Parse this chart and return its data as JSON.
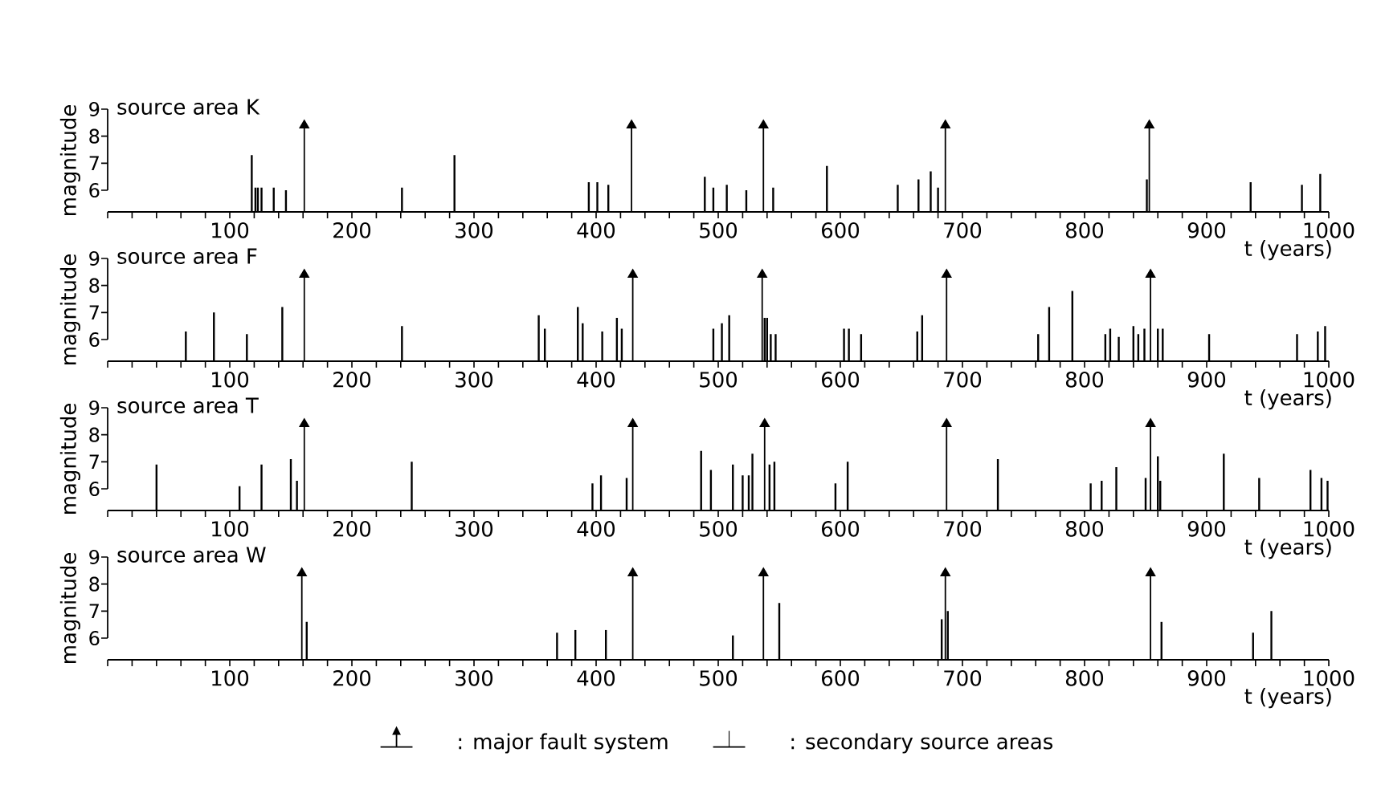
{
  "chart_data": [
    {
      "type": "lollipop",
      "title": "source area K",
      "ylabel": "magnitude",
      "xlabel": "t (years)",
      "xlim": [
        0,
        1000
      ],
      "ylim": [
        5.2,
        9
      ],
      "yticks": [
        6,
        7,
        8,
        9
      ],
      "xticks": [
        {
          "value": 0,
          "label": null
        },
        {
          "value": 20,
          "label": null
        },
        {
          "value": 40,
          "label": null
        },
        {
          "value": 60,
          "label": null
        },
        {
          "value": 80,
          "label": null
        },
        100,
        {
          "value": 120,
          "label": null
        },
        {
          "value": 140,
          "label": null
        },
        {
          "value": 160,
          "label": null
        },
        {
          "value": 180,
          "label": null
        },
        200,
        {
          "value": 220,
          "label": null
        },
        {
          "value": 240,
          "label": null
        },
        {
          "value": 260,
          "label": null
        },
        {
          "value": 280,
          "label": null
        },
        300,
        {
          "value": 320,
          "label": null
        },
        {
          "value": 340,
          "label": null
        },
        {
          "value": 360,
          "label": null
        },
        {
          "value": 380,
          "label": null
        },
        400,
        {
          "value": 420,
          "label": null
        },
        {
          "value": 440,
          "label": null
        },
        {
          "value": 460,
          "label": null
        },
        {
          "value": 480,
          "label": null
        },
        500,
        {
          "value": 520,
          "label": null
        },
        {
          "value": 540,
          "label": null
        },
        {
          "value": 560,
          "label": null
        },
        {
          "value": 580,
          "label": null
        },
        600,
        {
          "value": 620,
          "label": null
        },
        {
          "value": 640,
          "label": null
        },
        {
          "value": 660,
          "label": null
        },
        {
          "value": 680,
          "label": null
        },
        700,
        {
          "value": 720,
          "label": null
        },
        {
          "value": 740,
          "label": null
        },
        {
          "value": 760,
          "label": null
        },
        {
          "value": 780,
          "label": null
        },
        800,
        {
          "value": 820,
          "label": null
        },
        {
          "value": 840,
          "label": null
        },
        {
          "value": 860,
          "label": null
        },
        {
          "value": 880,
          "label": null
        },
        900,
        {
          "value": 920,
          "label": null
        },
        {
          "value": 940,
          "label": null
        },
        {
          "value": 960,
          "label": null
        },
        {
          "value": 980,
          "label": null
        },
        1000
      ],
      "series": [
        {
          "color": "#000000",
          "marker": "triangle",
          "x": [
            161,
            429,
            537,
            686,
            853
          ],
          "values": [
            8.4,
            8.4,
            8.4,
            8.4,
            8.4
          ]
        },
        {
          "type": "bar",
          "color": "#000000",
          "marker": "none",
          "x": [
            118,
            121,
            123,
            126,
            136,
            146,
            241,
            284,
            394,
            401,
            410,
            489,
            496,
            507,
            523,
            545,
            589,
            647,
            664,
            674,
            680,
            851,
            936,
            978,
            993
          ],
          "values": [
            7.3,
            6.1,
            6.1,
            6.1,
            6.1,
            6.0,
            6.1,
            7.3,
            6.3,
            6.3,
            6.2,
            6.5,
            6.1,
            6.2,
            6.0,
            6.1,
            6.9,
            6.2,
            6.4,
            6.7,
            6.1,
            6.4,
            6.3,
            6.2,
            6.6
          ]
        }
      ]
    },
    {
      "type": "lollipop",
      "title": "source area F",
      "ylabel": "magnitude",
      "xlabel": "t (years)",
      "xlim": [
        0,
        1000
      ],
      "ylim": [
        5.2,
        9
      ],
      "yticks": [
        6,
        7,
        8,
        9
      ],
      "xticks": [
        {
          "value": 0,
          "label": null
        },
        {
          "value": 20,
          "label": null
        },
        {
          "value": 40,
          "label": null
        },
        {
          "value": 60,
          "label": null
        },
        {
          "value": 80,
          "label": null
        },
        100,
        {
          "value": 120,
          "label": null
        },
        {
          "value": 140,
          "label": null
        },
        {
          "value": 160,
          "label": null
        },
        {
          "value": 180,
          "label": null
        },
        200,
        {
          "value": 220,
          "label": null
        },
        {
          "value": 240,
          "label": null
        },
        {
          "value": 260,
          "label": null
        },
        {
          "value": 280,
          "label": null
        },
        300,
        {
          "value": 320,
          "label": null
        },
        {
          "value": 340,
          "label": null
        },
        {
          "value": 360,
          "label": null
        },
        {
          "value": 380,
          "label": null
        },
        400,
        {
          "value": 420,
          "label": null
        },
        {
          "value": 440,
          "label": null
        },
        {
          "value": 460,
          "label": null
        },
        {
          "value": 480,
          "label": null
        },
        500,
        {
          "value": 520,
          "label": null
        },
        {
          "value": 540,
          "label": null
        },
        {
          "value": 560,
          "label": null
        },
        {
          "value": 580,
          "label": null
        },
        600,
        {
          "value": 620,
          "label": null
        },
        {
          "value": 640,
          "label": null
        },
        {
          "value": 660,
          "label": null
        },
        {
          "value": 680,
          "label": null
        },
        700,
        {
          "value": 720,
          "label": null
        },
        {
          "value": 740,
          "label": null
        },
        {
          "value": 760,
          "label": null
        },
        {
          "value": 780,
          "label": null
        },
        800,
        {
          "value": 820,
          "label": null
        },
        {
          "value": 840,
          "label": null
        },
        {
          "value": 860,
          "label": null
        },
        {
          "value": 880,
          "label": null
        },
        900,
        {
          "value": 920,
          "label": null
        },
        {
          "value": 940,
          "label": null
        },
        {
          "value": 960,
          "label": null
        },
        {
          "value": 980,
          "label": null
        },
        1000
      ],
      "series": [
        {
          "color": "#000000",
          "marker": "triangle",
          "x": [
            161,
            430,
            536,
            687,
            854
          ],
          "values": [
            8.4,
            8.4,
            8.4,
            8.4,
            8.4
          ]
        },
        {
          "type": "bar",
          "color": "#000000",
          "marker": "none",
          "x": [
            64,
            87,
            114,
            143,
            241,
            353,
            358,
            385,
            389,
            405,
            417,
            421,
            496,
            503,
            509,
            538,
            540,
            543,
            547,
            603,
            607,
            617,
            663,
            667,
            762,
            771,
            790,
            817,
            821,
            828,
            840,
            844,
            849,
            860,
            864,
            902,
            974,
            991,
            997
          ],
          "values": [
            6.3,
            7.0,
            6.2,
            7.2,
            6.5,
            6.9,
            6.4,
            7.2,
            6.6,
            6.3,
            6.8,
            6.4,
            6.4,
            6.6,
            6.9,
            6.8,
            6.8,
            6.2,
            6.2,
            6.4,
            6.4,
            6.2,
            6.3,
            6.9,
            6.2,
            7.2,
            7.8,
            6.2,
            6.4,
            6.1,
            6.5,
            6.2,
            6.4,
            6.4,
            6.4,
            6.2,
            6.2,
            6.3,
            6.5
          ]
        }
      ]
    },
    {
      "type": "lollipop",
      "title": "source area T",
      "ylabel": "magnitude",
      "xlabel": "t (years)",
      "xlim": [
        0,
        1000
      ],
      "ylim": [
        5.2,
        9
      ],
      "yticks": [
        6,
        7,
        8,
        9
      ],
      "xticks": [
        {
          "value": 0,
          "label": null
        },
        {
          "value": 20,
          "label": null
        },
        {
          "value": 40,
          "label": null
        },
        {
          "value": 60,
          "label": null
        },
        {
          "value": 80,
          "label": null
        },
        100,
        {
          "value": 120,
          "label": null
        },
        {
          "value": 140,
          "label": null
        },
        {
          "value": 160,
          "label": null
        },
        {
          "value": 180,
          "label": null
        },
        200,
        {
          "value": 220,
          "label": null
        },
        {
          "value": 240,
          "label": null
        },
        {
          "value": 260,
          "label": null
        },
        {
          "value": 280,
          "label": null
        },
        300,
        {
          "value": 320,
          "label": null
        },
        {
          "value": 340,
          "label": null
        },
        {
          "value": 360,
          "label": null
        },
        {
          "value": 380,
          "label": null
        },
        400,
        {
          "value": 420,
          "label": null
        },
        {
          "value": 440,
          "label": null
        },
        {
          "value": 460,
          "label": null
        },
        {
          "value": 480,
          "label": null
        },
        500,
        {
          "value": 520,
          "label": null
        },
        {
          "value": 540,
          "label": null
        },
        {
          "value": 560,
          "label": null
        },
        {
          "value": 580,
          "label": null
        },
        600,
        {
          "value": 620,
          "label": null
        },
        {
          "value": 640,
          "label": null
        },
        {
          "value": 660,
          "label": null
        },
        {
          "value": 680,
          "label": null
        },
        700,
        {
          "value": 720,
          "label": null
        },
        {
          "value": 740,
          "label": null
        },
        {
          "value": 760,
          "label": null
        },
        {
          "value": 780,
          "label": null
        },
        800,
        {
          "value": 820,
          "label": null
        },
        {
          "value": 840,
          "label": null
        },
        {
          "value": 860,
          "label": null
        },
        {
          "value": 880,
          "label": null
        },
        900,
        {
          "value": 920,
          "label": null
        },
        {
          "value": 940,
          "label": null
        },
        {
          "value": 960,
          "label": null
        },
        {
          "value": 980,
          "label": null
        },
        1000
      ],
      "series": [
        {
          "color": "#000000",
          "marker": "triangle",
          "x": [
            161,
            430,
            538,
            687,
            854
          ],
          "values": [
            8.4,
            8.4,
            8.4,
            8.4,
            8.4
          ]
        },
        {
          "type": "bar",
          "color": "#000000",
          "marker": "none",
          "x": [
            40,
            108,
            126,
            150,
            155,
            249,
            397,
            404,
            425,
            486,
            494,
            512,
            520,
            525,
            528,
            542,
            546,
            596,
            606,
            729,
            805,
            814,
            826,
            850,
            860,
            862,
            914,
            943,
            985,
            994,
            999
          ],
          "values": [
            6.9,
            6.1,
            6.9,
            7.1,
            6.3,
            7.0,
            6.2,
            6.5,
            6.4,
            7.4,
            6.7,
            6.9,
            6.5,
            6.5,
            7.3,
            6.9,
            7.0,
            6.2,
            7.0,
            7.1,
            6.2,
            6.3,
            6.8,
            6.4,
            7.2,
            6.3,
            7.3,
            6.4,
            6.7,
            6.4,
            6.3
          ]
        }
      ]
    },
    {
      "type": "lollipop",
      "title": "source area W",
      "ylabel": "magnitude",
      "xlabel": "t (years)",
      "xlim": [
        0,
        1000
      ],
      "ylim": [
        5.2,
        9
      ],
      "yticks": [
        6,
        7,
        8,
        9
      ],
      "legend": "bottom",
      "xticks": [
        {
          "value": 0,
          "label": null
        },
        {
          "value": 20,
          "label": null
        },
        {
          "value": 40,
          "label": null
        },
        {
          "value": 60,
          "label": null
        },
        {
          "value": 80,
          "label": null
        },
        100,
        {
          "value": 120,
          "label": null
        },
        {
          "value": 140,
          "label": null
        },
        {
          "value": 160,
          "label": null
        },
        {
          "value": 180,
          "label": null
        },
        200,
        {
          "value": 220,
          "label": null
        },
        {
          "value": 240,
          "label": null
        },
        {
          "value": 260,
          "label": null
        },
        {
          "value": 280,
          "label": null
        },
        300,
        {
          "value": 320,
          "label": null
        },
        {
          "value": 340,
          "label": null
        },
        {
          "value": 360,
          "label": null
        },
        {
          "value": 380,
          "label": null
        },
        400,
        {
          "value": 420,
          "label": null
        },
        {
          "value": 440,
          "label": null
        },
        {
          "value": 460,
          "label": null
        },
        {
          "value": 480,
          "label": null
        },
        500,
        {
          "value": 520,
          "label": null
        },
        {
          "value": 540,
          "label": null
        },
        {
          "value": 560,
          "label": null
        },
        {
          "value": 580,
          "label": null
        },
        600,
        {
          "value": 620,
          "label": null
        },
        {
          "value": 640,
          "label": null
        },
        {
          "value": 660,
          "label": null
        },
        {
          "value": 680,
          "label": null
        },
        700,
        {
          "value": 720,
          "label": null
        },
        {
          "value": 740,
          "label": null
        },
        {
          "value": 760,
          "label": null
        },
        {
          "value": 780,
          "label": null
        },
        800,
        {
          "value": 820,
          "label": null
        },
        {
          "value": 840,
          "label": null
        },
        {
          "value": 860,
          "label": null
        },
        {
          "value": 880,
          "label": null
        },
        900,
        {
          "value": 920,
          "label": null
        },
        {
          "value": 940,
          "label": null
        },
        {
          "value": 960,
          "label": null
        },
        {
          "value": 980,
          "label": null
        },
        1000
      ],
      "series": [
        {
          "name": ": major fault system",
          "color": "#000000",
          "marker": "triangle",
          "x": [
            159,
            430,
            537,
            686,
            854
          ],
          "values": [
            8.4,
            8.4,
            8.4,
            8.4,
            8.4
          ]
        },
        {
          "name": ": secondary source areas",
          "type": "bar",
          "color": "#000000",
          "marker": "none",
          "x": [
            163,
            368,
            383,
            408,
            512,
            550,
            683,
            688,
            863,
            938,
            953
          ],
          "values": [
            6.6,
            6.2,
            6.3,
            6.3,
            6.1,
            7.3,
            6.7,
            7.0,
            6.6,
            6.2,
            7.0
          ]
        }
      ]
    }
  ]
}
